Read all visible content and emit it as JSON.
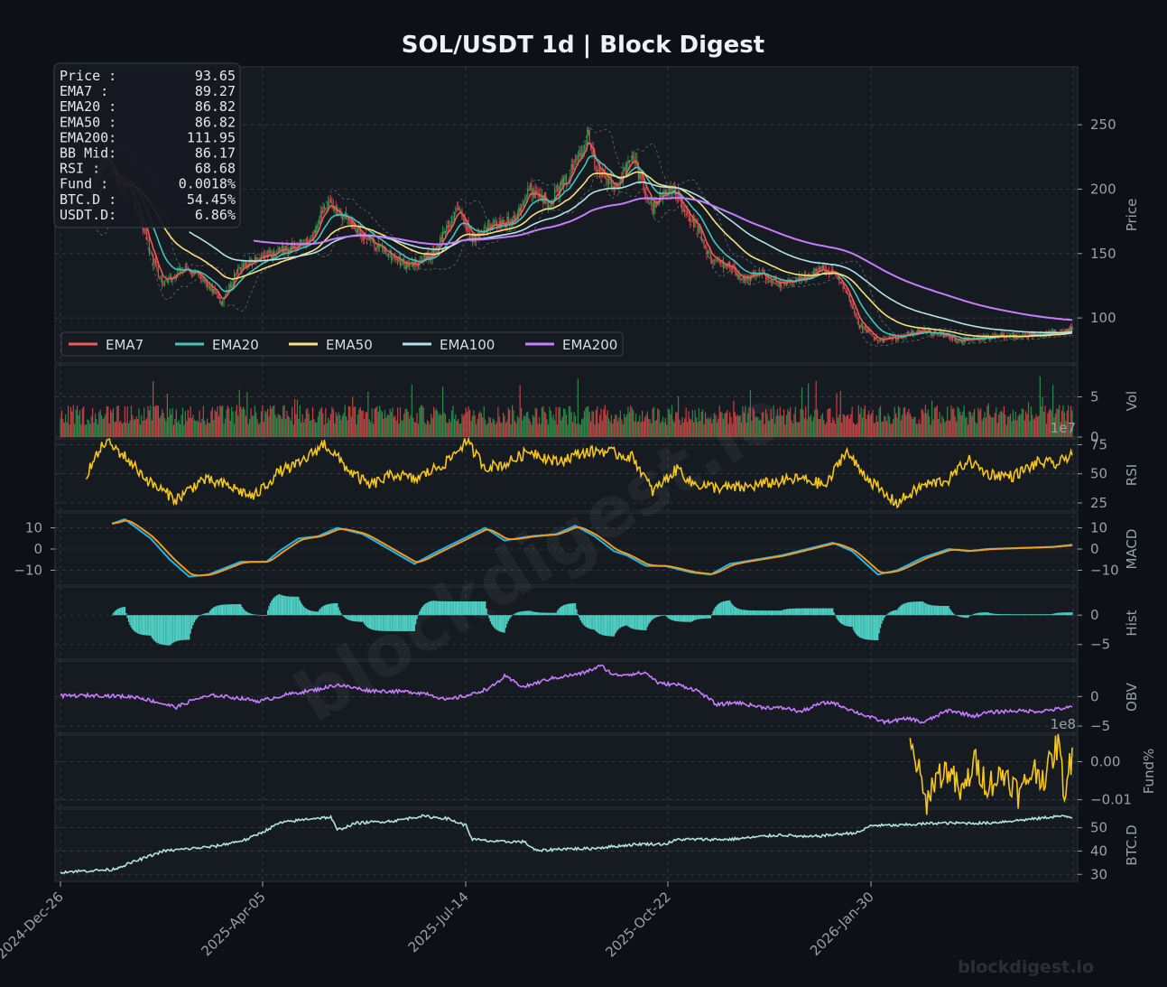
{
  "title": "SOL/USDT  1d  |  Block Digest",
  "watermark": "blockdigest.io",
  "footer_brand": "blockdigest.io",
  "colors": {
    "background": "#0d1017",
    "panel": "#161a21",
    "grid": "#3a3f4a",
    "text": "#9aa0a8",
    "title": "#eef0f3",
    "up_candle": "#2e9e4f",
    "down_candle": "#e34b4b",
    "ema7": "#ef5a5a",
    "ema20": "#45c4b8",
    "ema50": "#f7e27a",
    "ema100": "#b3e3e4",
    "ema200": "#c77dff",
    "rsi": "#f5c518",
    "macd": "#1fb6f0",
    "macd_signal": "#f29a1a",
    "hist": "#4fd1c5",
    "obv": "#c77dff",
    "funding": "#f5c518",
    "btcd": "#b3e3e4"
  },
  "info_box": [
    {
      "label": "Price :",
      "value": "93.65"
    },
    {
      "label": "EMA7  :",
      "value": "89.27"
    },
    {
      "label": "EMA20 :",
      "value": "86.82"
    },
    {
      "label": "EMA50 :",
      "value": "86.82"
    },
    {
      "label": "EMA200:",
      "value": "111.95"
    },
    {
      "label": "BB Mid:",
      "value": "86.17"
    },
    {
      "label": "RSI   :",
      "value": "68.68"
    },
    {
      "label": "Fund  :",
      "value": "0.0018%"
    },
    {
      "label": "BTC.D :",
      "value": "54.45%"
    },
    {
      "label": "USDT.D:",
      "value": "6.86%"
    }
  ],
  "chart_data": {
    "type": "line",
    "x_range": [
      "2024-12-26",
      "2026-04-20"
    ],
    "x_ticks": [
      "2024-Dec-26",
      "2025-Apr-05",
      "2025-Jul-14",
      "2025-Oct-22",
      "2026-Jan-30"
    ],
    "panels": [
      {
        "id": "price",
        "ylabel": "Price",
        "yticks": [
          "100",
          "150",
          "200",
          "250"
        ],
        "ylim": [
          65,
          295
        ],
        "candles_anchor": [
          [
            0,
            192
          ],
          [
            20,
            180
          ],
          [
            35,
            230
          ],
          [
            45,
            205
          ],
          [
            55,
            200
          ],
          [
            70,
            150
          ],
          [
            80,
            125
          ],
          [
            95,
            138
          ],
          [
            110,
            132
          ],
          [
            125,
            112
          ],
          [
            140,
            140
          ],
          [
            160,
            148
          ],
          [
            180,
            155
          ],
          [
            195,
            160
          ],
          [
            205,
            190
          ],
          [
            220,
            180
          ],
          [
            240,
            160
          ],
          [
            255,
            150
          ],
          [
            270,
            140
          ],
          [
            290,
            150
          ],
          [
            300,
            170
          ],
          [
            310,
            185
          ],
          [
            320,
            160
          ],
          [
            330,
            170
          ],
          [
            350,
            175
          ],
          [
            365,
            200
          ],
          [
            380,
            190
          ],
          [
            395,
            210
          ],
          [
            410,
            245
          ],
          [
            415,
            220
          ],
          [
            430,
            200
          ],
          [
            445,
            225
          ],
          [
            450,
            210
          ],
          [
            460,
            185
          ],
          [
            470,
            200
          ],
          [
            480,
            195
          ],
          [
            485,
            180
          ],
          [
            495,
            170
          ],
          [
            505,
            145
          ],
          [
            520,
            140
          ],
          [
            530,
            130
          ],
          [
            545,
            135
          ],
          [
            560,
            125
          ],
          [
            575,
            130
          ],
          [
            590,
            138
          ],
          [
            600,
            135
          ],
          [
            610,
            120
          ],
          [
            620,
            95
          ],
          [
            635,
            82
          ],
          [
            650,
            85
          ],
          [
            670,
            90
          ],
          [
            685,
            87
          ],
          [
            700,
            82
          ],
          [
            720,
            85
          ],
          [
            740,
            86
          ],
          [
            760,
            87
          ],
          [
            775,
            89
          ],
          [
            786,
            93.65
          ]
        ],
        "series": [
          {
            "name": "EMA7",
            "period": 7
          },
          {
            "name": "EMA20",
            "period": 20
          },
          {
            "name": "EMA50",
            "period": 50
          },
          {
            "name": "EMA100",
            "period": 100
          },
          {
            "name": "EMA200",
            "period": 200
          }
        ]
      },
      {
        "id": "vol",
        "ylabel": "Vol",
        "exponent": "1e7",
        "yticks": [
          "0",
          "5"
        ],
        "ylim": [
          0,
          9
        ]
      },
      {
        "id": "rsi",
        "ylabel": "RSI",
        "yticks": [
          "25",
          "50",
          "75"
        ],
        "ylim": [
          18,
          80
        ],
        "anchors": [
          [
            20,
            50
          ],
          [
            35,
            78
          ],
          [
            50,
            65
          ],
          [
            70,
            42
          ],
          [
            90,
            28
          ],
          [
            110,
            45
          ],
          [
            130,
            40
          ],
          [
            150,
            30
          ],
          [
            170,
            52
          ],
          [
            185,
            58
          ],
          [
            205,
            76
          ],
          [
            225,
            52
          ],
          [
            240,
            40
          ],
          [
            260,
            50
          ],
          [
            275,
            45
          ],
          [
            300,
            60
          ],
          [
            315,
            78
          ],
          [
            330,
            56
          ],
          [
            345,
            58
          ],
          [
            365,
            70
          ],
          [
            385,
            60
          ],
          [
            405,
            68
          ],
          [
            420,
            70
          ],
          [
            445,
            64
          ],
          [
            460,
            35
          ],
          [
            480,
            55
          ],
          [
            490,
            42
          ],
          [
            510,
            38
          ],
          [
            530,
            38
          ],
          [
            550,
            42
          ],
          [
            575,
            46
          ],
          [
            595,
            40
          ],
          [
            610,
            70
          ],
          [
            620,
            55
          ],
          [
            640,
            32
          ],
          [
            650,
            25
          ],
          [
            670,
            40
          ],
          [
            690,
            45
          ],
          [
            705,
            62
          ],
          [
            720,
            50
          ],
          [
            740,
            48
          ],
          [
            760,
            60
          ],
          [
            775,
            58
          ],
          [
            786,
            68.68
          ]
        ]
      },
      {
        "id": "macd",
        "ylabel": "MACD",
        "yticks": [
          "-10",
          "0",
          "10"
        ],
        "ylim": [
          -17,
          17
        ],
        "anchors": [
          [
            40,
            12
          ],
          [
            50,
            14
          ],
          [
            70,
            5
          ],
          [
            85,
            -5
          ],
          [
            100,
            -13
          ],
          [
            115,
            -12
          ],
          [
            140,
            -6
          ],
          [
            160,
            -6
          ],
          [
            170,
            -1
          ],
          [
            185,
            5
          ],
          [
            200,
            6
          ],
          [
            215,
            10
          ],
          [
            235,
            7
          ],
          [
            255,
            0
          ],
          [
            275,
            -7
          ],
          [
            290,
            -2
          ],
          [
            310,
            4
          ],
          [
            330,
            10
          ],
          [
            345,
            4
          ],
          [
            365,
            6
          ],
          [
            385,
            7
          ],
          [
            400,
            11
          ],
          [
            415,
            6
          ],
          [
            430,
            -1
          ],
          [
            440,
            -3
          ],
          [
            455,
            -8
          ],
          [
            470,
            -8
          ],
          [
            490,
            -11
          ],
          [
            505,
            -12
          ],
          [
            520,
            -7
          ],
          [
            540,
            -5
          ],
          [
            560,
            -3
          ],
          [
            580,
            0
          ],
          [
            600,
            3
          ],
          [
            615,
            -1
          ],
          [
            635,
            -12
          ],
          [
            650,
            -10
          ],
          [
            670,
            -4
          ],
          [
            690,
            0
          ],
          [
            705,
            -1
          ],
          [
            720,
            0
          ],
          [
            745,
            0.5
          ],
          [
            770,
            1
          ],
          [
            786,
            2
          ]
        ]
      },
      {
        "id": "hist",
        "ylabel": "Hist",
        "yticks": [
          "-5",
          "0"
        ],
        "ylim": [
          -7.5,
          4.8
        ]
      },
      {
        "id": "obv",
        "ylabel": "OBV",
        "exponent": "1e8",
        "yticks": [
          "-5",
          "0"
        ],
        "ylim": [
          -6.2,
          6.0
        ],
        "anchors": [
          [
            0,
            0.1
          ],
          [
            30,
            0.2
          ],
          [
            60,
            -0.1
          ],
          [
            90,
            -1.8
          ],
          [
            105,
            -0.4
          ],
          [
            120,
            0.2
          ],
          [
            140,
            -0.3
          ],
          [
            155,
            -0.8
          ],
          [
            175,
            0.3
          ],
          [
            200,
            1.2
          ],
          [
            215,
            2.0
          ],
          [
            240,
            1.0
          ],
          [
            270,
            0.8
          ],
          [
            285,
            0.5
          ],
          [
            300,
            -0.6
          ],
          [
            320,
            0.4
          ],
          [
            335,
            1.6
          ],
          [
            345,
            3.4
          ],
          [
            360,
            1.6
          ],
          [
            380,
            3.0
          ],
          [
            405,
            3.9
          ],
          [
            420,
            5.2
          ],
          [
            430,
            3.6
          ],
          [
            455,
            4.0
          ],
          [
            465,
            2.2
          ],
          [
            480,
            2.0
          ],
          [
            495,
            1.0
          ],
          [
            510,
            -1.4
          ],
          [
            525,
            -1.0
          ],
          [
            545,
            -1.8
          ],
          [
            565,
            -2.0
          ],
          [
            575,
            -2.6
          ],
          [
            590,
            -1.2
          ],
          [
            600,
            -1.0
          ],
          [
            620,
            -2.8
          ],
          [
            640,
            -4.3
          ],
          [
            660,
            -3.7
          ],
          [
            670,
            -4.4
          ],
          [
            690,
            -2.3
          ],
          [
            710,
            -3.3
          ],
          [
            720,
            -2.7
          ],
          [
            740,
            -2.4
          ],
          [
            760,
            -2.5
          ],
          [
            786,
            -1.8
          ]
        ]
      },
      {
        "id": "funding",
        "ylabel": "Fund%",
        "yticks": [
          "-0.01",
          "0.00"
        ],
        "ylim": [
          -0.012,
          0.007
        ],
        "anchors": [
          [
            660,
            0.004
          ],
          [
            665,
            0.0
          ],
          [
            672,
            -0.011
          ],
          [
            680,
            -0.004
          ],
          [
            690,
            -0.002
          ],
          [
            700,
            -0.009
          ],
          [
            710,
            0.0
          ],
          [
            720,
            -0.006
          ],
          [
            735,
            -0.003
          ],
          [
            745,
            -0.009
          ],
          [
            755,
            -0.002
          ],
          [
            765,
            -0.004
          ],
          [
            775,
            0.005
          ],
          [
            780,
            -0.008
          ],
          [
            786,
            0.002
          ]
        ]
      },
      {
        "id": "btcd",
        "ylabel": "BTC.D",
        "yticks": [
          "30",
          "40",
          "50"
        ],
        "ylim": [
          27,
          58
        ],
        "anchors": [
          [
            0,
            31
          ],
          [
            40,
            32
          ],
          [
            60,
            36
          ],
          [
            80,
            40
          ],
          [
            100,
            41
          ],
          [
            120,
            42
          ],
          [
            145,
            45
          ],
          [
            160,
            49
          ],
          [
            170,
            52
          ],
          [
            195,
            54
          ],
          [
            210,
            54.5
          ],
          [
            215,
            49
          ],
          [
            230,
            52
          ],
          [
            260,
            53
          ],
          [
            280,
            55
          ],
          [
            300,
            54
          ],
          [
            315,
            51
          ],
          [
            320,
            45
          ],
          [
            340,
            44
          ],
          [
            360,
            44
          ],
          [
            370,
            40
          ],
          [
            390,
            41
          ],
          [
            410,
            41
          ],
          [
            430,
            42
          ],
          [
            450,
            43
          ],
          [
            470,
            43
          ],
          [
            480,
            45
          ],
          [
            500,
            45
          ],
          [
            520,
            45
          ],
          [
            540,
            46
          ],
          [
            560,
            47
          ],
          [
            580,
            46
          ],
          [
            600,
            47
          ],
          [
            620,
            48
          ],
          [
            630,
            51
          ],
          [
            650,
            51
          ],
          [
            680,
            52
          ],
          [
            700,
            52
          ],
          [
            720,
            52
          ],
          [
            740,
            53
          ],
          [
            760,
            54
          ],
          [
            775,
            55
          ],
          [
            786,
            54.45
          ]
        ]
      }
    ]
  }
}
